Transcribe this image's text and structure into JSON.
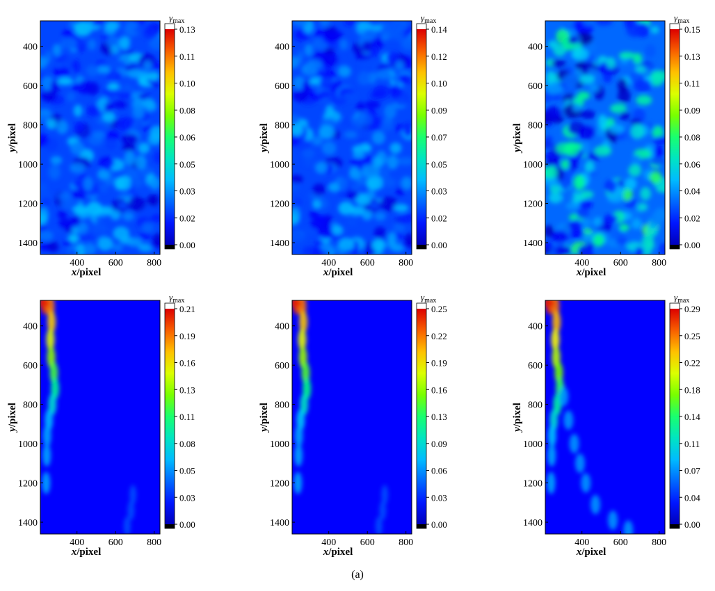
{
  "caption": "(a)",
  "chart_data": [
    {
      "type": "heatmap",
      "pattern": "speckle",
      "intensity": 0.18,
      "xlabel_var": "x",
      "xlabel_unit": "/pixel",
      "ylabel_var": "y",
      "ylabel_unit": "/pixel",
      "x_ticks": [
        400,
        600,
        800
      ],
      "y_ticks": [
        400,
        600,
        800,
        1000,
        1200,
        1400
      ],
      "xlim": [
        210,
        830
      ],
      "ylim": [
        270,
        1460
      ],
      "colorbar_title": "γ",
      "colorbar_subscript": "max",
      "colorbar_ticks": [
        "0.13",
        "0.11",
        "0.10",
        "0.08",
        "0.06",
        "0.05",
        "0.03",
        "0.02",
        "0.00"
      ],
      "colorbar_max": 0.13
    },
    {
      "type": "heatmap",
      "pattern": "speckle",
      "intensity": 0.17,
      "xlabel_var": "x",
      "xlabel_unit": "/pixel",
      "ylabel_var": "y",
      "ylabel_unit": "/pixel",
      "x_ticks": [
        400,
        600,
        800
      ],
      "y_ticks": [
        400,
        600,
        800,
        1000,
        1200,
        1400
      ],
      "xlim": [
        210,
        830
      ],
      "ylim": [
        270,
        1460
      ],
      "colorbar_title": "γ",
      "colorbar_subscript": "max",
      "colorbar_ticks": [
        "0.14",
        "0.12",
        "0.10",
        "0.09",
        "0.07",
        "0.05",
        "0.03",
        "0.02",
        "0.00"
      ],
      "colorbar_max": 0.14
    },
    {
      "type": "heatmap",
      "pattern": "speckle-high",
      "intensity": 0.3,
      "xlabel_var": "x",
      "xlabel_unit": "/pixel",
      "ylabel_var": "y",
      "ylabel_unit": "/pixel",
      "x_ticks": [
        400,
        600,
        800
      ],
      "y_ticks": [
        400,
        600,
        800,
        1000,
        1200,
        1400
      ],
      "xlim": [
        210,
        830
      ],
      "ylim": [
        270,
        1460
      ],
      "colorbar_title": "γ",
      "colorbar_subscript": "max",
      "colorbar_ticks": [
        "0.15",
        "0.13",
        "0.11",
        "0.09",
        "0.08",
        "0.06",
        "0.04",
        "0.02",
        "0.00"
      ],
      "colorbar_max": 0.15
    },
    {
      "type": "heatmap",
      "pattern": "shear-band",
      "band_extent": 0.45,
      "xlabel_var": "x",
      "xlabel_unit": "/pixel",
      "ylabel_var": "y",
      "ylabel_unit": "/pixel",
      "x_ticks": [
        400,
        600,
        800
      ],
      "y_ticks": [
        400,
        600,
        800,
        1000,
        1200,
        1400
      ],
      "xlim": [
        210,
        830
      ],
      "ylim": [
        270,
        1460
      ],
      "colorbar_title": "γ",
      "colorbar_subscript": "max",
      "colorbar_ticks": [
        "0.21",
        "0.19",
        "0.16",
        "0.13",
        "0.11",
        "0.08",
        "0.05",
        "0.03",
        "0.00"
      ],
      "colorbar_max": 0.21
    },
    {
      "type": "heatmap",
      "pattern": "shear-band",
      "band_extent": 0.55,
      "xlabel_var": "x",
      "xlabel_unit": "/pixel",
      "ylabel_var": "y",
      "ylabel_unit": "/pixel",
      "x_ticks": [
        400,
        600,
        800
      ],
      "y_ticks": [
        400,
        600,
        800,
        1000,
        1200,
        1400
      ],
      "xlim": [
        210,
        830
      ],
      "ylim": [
        270,
        1460
      ],
      "colorbar_title": "γ",
      "colorbar_subscript": "max",
      "colorbar_ticks": [
        "0.25",
        "0.22",
        "0.19",
        "0.16",
        "0.13",
        "0.09",
        "0.06",
        "0.03",
        "0.00"
      ],
      "colorbar_max": 0.25
    },
    {
      "type": "heatmap",
      "pattern": "shear-band",
      "band_extent": 0.8,
      "xlabel_var": "x",
      "xlabel_unit": "/pixel",
      "ylabel_var": "y",
      "ylabel_unit": "/pixel",
      "x_ticks": [
        400,
        600,
        800
      ],
      "y_ticks": [
        400,
        600,
        800,
        1000,
        1200,
        1400
      ],
      "xlim": [
        210,
        830
      ],
      "ylim": [
        270,
        1460
      ],
      "colorbar_title": "γ",
      "colorbar_subscript": "max",
      "colorbar_ticks": [
        "0.29",
        "0.25",
        "0.22",
        "0.18",
        "0.14",
        "0.11",
        "0.07",
        "0.04",
        "0.00"
      ],
      "colorbar_max": 0.29
    }
  ]
}
